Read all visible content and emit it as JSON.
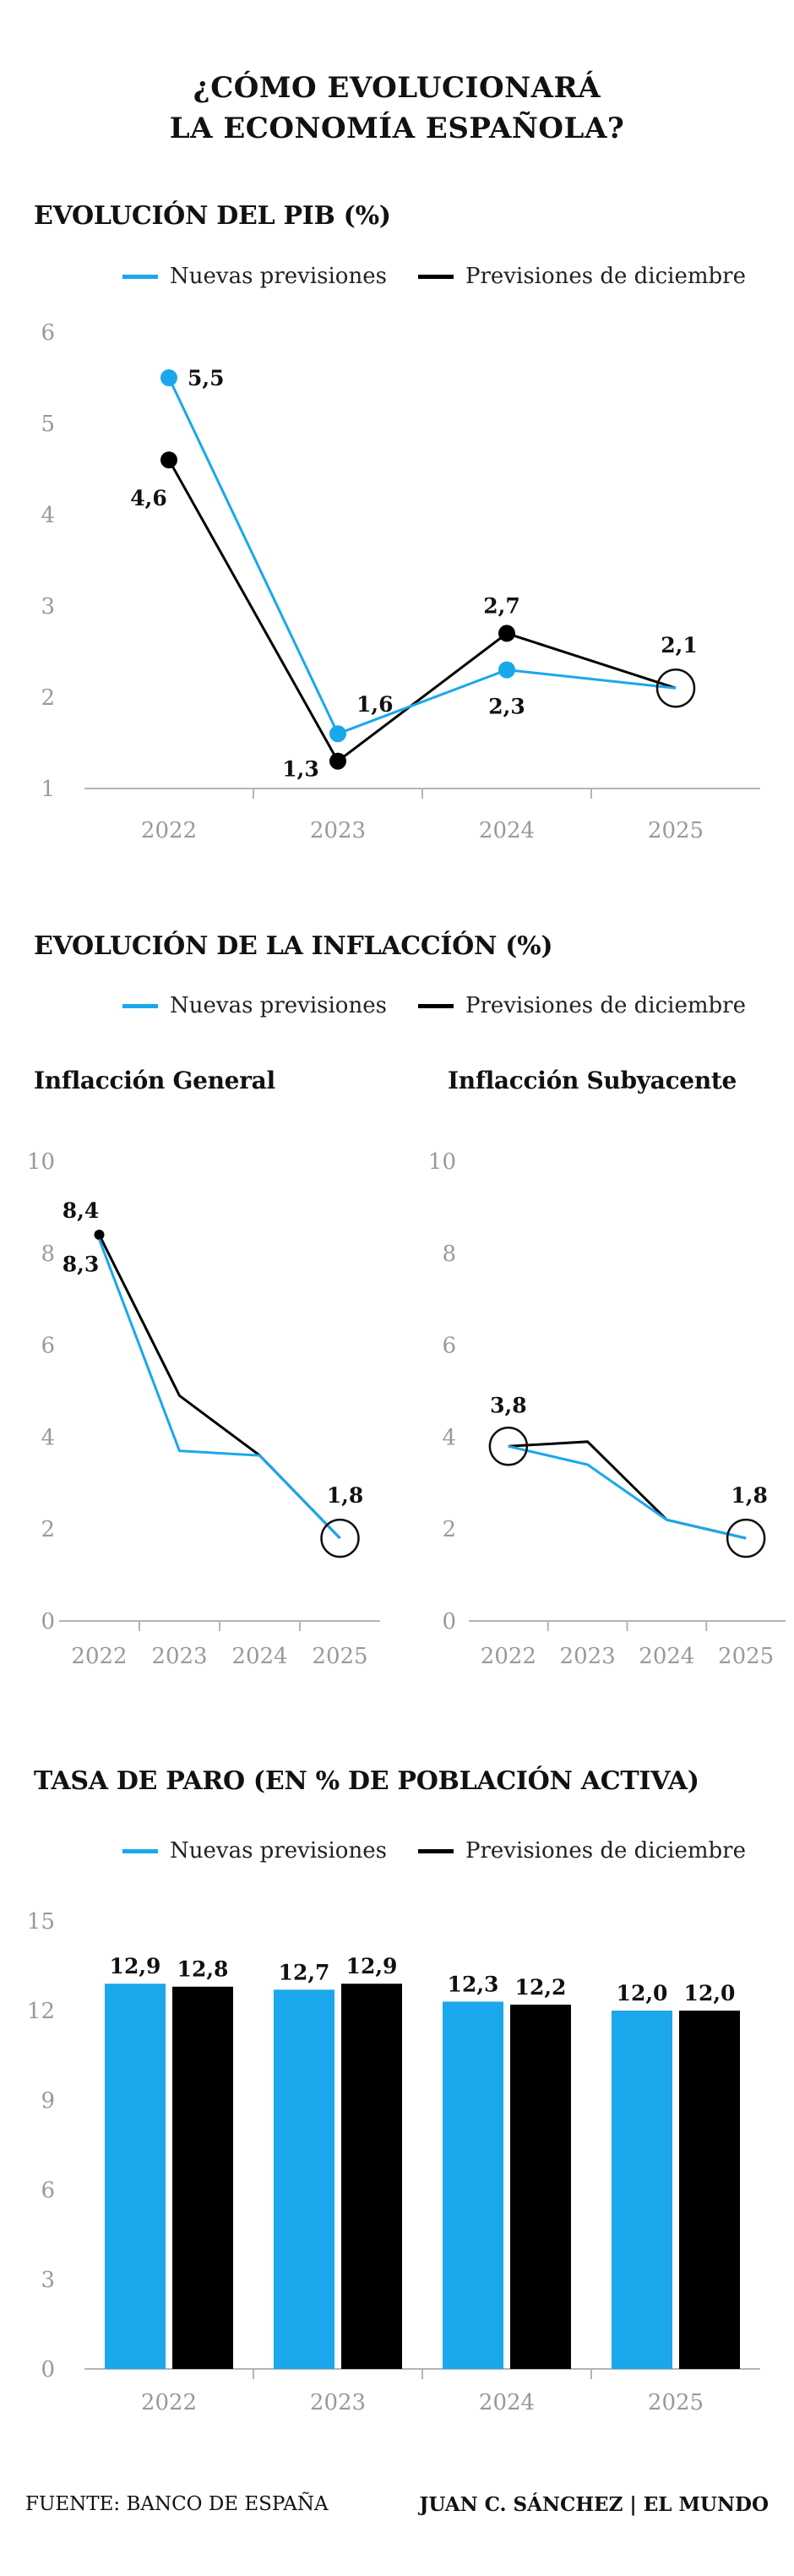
{
  "main_title": [
    "¿CÓMO EVOLUCIONARÁ",
    "LA ECONOMÍA ESPAÑOLA?"
  ],
  "legend": {
    "new_label": "Nuevas previsiones",
    "old_label": "Previsiones de diciembre"
  },
  "colors": {
    "new": "#1aa7ec",
    "old": "#000000",
    "axis": "#b4b4b4",
    "tick_text": "#999999"
  },
  "sections": {
    "pib": {
      "title": "EVOLUCIÓN DEL PIB (%)"
    },
    "inflation": {
      "title": "EVOLUCIÓN DE LA INFLACCÍÓN (%)",
      "general_title": "Inflacción General",
      "core_title": "Inflacción Subyacente"
    },
    "unemployment": {
      "title": "TASA DE PARO (EN % DE POBLACIÓN ACTIVA)"
    }
  },
  "footer": {
    "source": "FUENTE: BANCO DE ESPAÑA",
    "credit": "JUAN C. SÁNCHEZ | EL MUNDO"
  },
  "chart_data": [
    {
      "id": "pib",
      "type": "line",
      "x": [
        "2022",
        "2023",
        "2024",
        "2025"
      ],
      "ylim": [
        1,
        6
      ],
      "yticks": [
        1,
        2,
        3,
        4,
        5,
        6
      ],
      "series": [
        {
          "name": "Nuevas previsiones",
          "color": "#1aa7ec",
          "values": [
            5.5,
            1.6,
            2.3,
            2.1
          ],
          "labels": [
            "5,5",
            "1,6",
            "2,3",
            "2,1"
          ]
        },
        {
          "name": "Previsiones de diciembre",
          "color": "#000000",
          "values": [
            4.6,
            1.3,
            2.7,
            2.1
          ],
          "labels": [
            "4,6",
            "1,3",
            "2,7",
            ""
          ]
        }
      ]
    },
    {
      "id": "inflation-general",
      "type": "line",
      "x": [
        "2022",
        "2023",
        "2024",
        "2025"
      ],
      "ylim": [
        0,
        10
      ],
      "yticks": [
        0,
        2,
        4,
        6,
        8,
        10
      ],
      "series": [
        {
          "name": "Nuevas previsiones",
          "color": "#1aa7ec",
          "values": [
            8.3,
            3.7,
            3.6,
            1.8
          ],
          "labels": [
            "8,3",
            "",
            "",
            "1,8"
          ]
        },
        {
          "name": "Previsiones de diciembre",
          "color": "#000000",
          "values": [
            8.4,
            4.9,
            3.6,
            1.8
          ],
          "labels": [
            "8,4",
            "",
            "",
            ""
          ]
        }
      ]
    },
    {
      "id": "inflation-core",
      "type": "line",
      "x": [
        "2022",
        "2023",
        "2024",
        "2025"
      ],
      "ylim": [
        0,
        10
      ],
      "yticks": [
        0,
        2,
        4,
        6,
        8,
        10
      ],
      "series": [
        {
          "name": "Nuevas previsiones",
          "color": "#1aa7ec",
          "values": [
            3.8,
            3.4,
            2.2,
            1.8
          ],
          "labels": [
            "3,8",
            "",
            "",
            "1,8"
          ]
        },
        {
          "name": "Previsiones de diciembre",
          "color": "#000000",
          "values": [
            3.8,
            3.9,
            2.2,
            1.8
          ],
          "labels": [
            "",
            "",
            "",
            ""
          ]
        }
      ]
    },
    {
      "id": "unemployment",
      "type": "bar",
      "categories": [
        "2022",
        "2023",
        "2024",
        "2025"
      ],
      "ylim": [
        0,
        15
      ],
      "yticks": [
        0,
        3,
        6,
        9,
        12,
        15
      ],
      "series": [
        {
          "name": "Nuevas previsiones",
          "color": "#1aa7ec",
          "values": [
            12.9,
            12.7,
            12.3,
            12.0
          ],
          "labels": [
            "12,9",
            "12,7",
            "12,3",
            "12,0"
          ]
        },
        {
          "name": "Previsiones de diciembre",
          "color": "#000000",
          "values": [
            12.8,
            12.9,
            12.2,
            12.0
          ],
          "labels": [
            "12,8",
            "12,9",
            "12,2",
            "12,0"
          ]
        }
      ]
    }
  ]
}
